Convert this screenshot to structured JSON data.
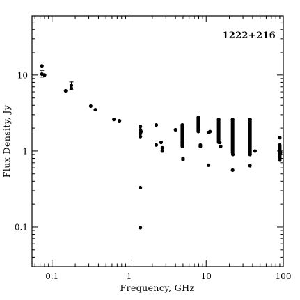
{
  "chart_data": {
    "type": "scatter",
    "title": "1222+216",
    "xlabel": "Frequency, GHz",
    "ylabel": "Flux Density, Jy",
    "xscale": "log",
    "yscale": "log",
    "xlim": [
      0.055,
      100
    ],
    "ylim": [
      0.03,
      60
    ],
    "grid": false,
    "legend": "none",
    "marker_color": "#000000",
    "x_ticks": [
      {
        "value": 0.1,
        "label": "0.1"
      },
      {
        "value": 1,
        "label": "1"
      },
      {
        "value": 10,
        "label": "10"
      },
      {
        "value": 100,
        "label": "100"
      }
    ],
    "y_ticks": [
      {
        "value": 0.1,
        "label": "0.1"
      },
      {
        "value": 1,
        "label": "1"
      },
      {
        "value": 10,
        "label": "10"
      }
    ],
    "points": [
      [
        0.074,
        13.2
      ],
      [
        0.074,
        10.3
      ],
      [
        0.08,
        10.0
      ],
      [
        0.15,
        6.2
      ],
      [
        0.178,
        6.7
      ],
      [
        0.178,
        7.3
      ],
      [
        0.318,
        3.9
      ],
      [
        0.365,
        3.5
      ],
      [
        0.635,
        2.6
      ],
      [
        0.75,
        2.5
      ],
      [
        1.4,
        2.1
      ],
      [
        1.4,
        1.9
      ],
      [
        1.4,
        1.7
      ],
      [
        1.4,
        1.55
      ],
      [
        1.43,
        1.8
      ],
      [
        1.4,
        0.33
      ],
      [
        1.4,
        0.098
      ],
      [
        2.25,
        2.2
      ],
      [
        2.25,
        1.2
      ],
      [
        2.6,
        1.3
      ],
      [
        2.7,
        1.1
      ],
      [
        2.7,
        1.0
      ],
      [
        4.0,
        1.9
      ],
      [
        4.9,
        2.2
      ],
      [
        4.9,
        1.3
      ],
      [
        5.0,
        0.8
      ],
      [
        5.0,
        0.77
      ],
      [
        7.9,
        2.75
      ],
      [
        8.0,
        1.9
      ],
      [
        8.4,
        1.15
      ],
      [
        8.4,
        1.2
      ],
      [
        10.7,
        1.75
      ],
      [
        11.2,
        1.8
      ],
      [
        10.7,
        0.65
      ],
      [
        14.5,
        2.6
      ],
      [
        15.0,
        1.3
      ],
      [
        15.4,
        1.15
      ],
      [
        22.0,
        2.6
      ],
      [
        22.2,
        0.9
      ],
      [
        22.0,
        0.56
      ],
      [
        37.0,
        2.6
      ],
      [
        37.0,
        0.9
      ],
      [
        37.0,
        0.64
      ],
      [
        43.0,
        1.0
      ],
      [
        90.0,
        1.5
      ],
      [
        90.0,
        0.82
      ],
      [
        90.0,
        0.76
      ],
      [
        92.0,
        0.95
      ]
    ],
    "error_bars": [
      {
        "x": 0.074,
        "y": 10.4,
        "low": 9.4,
        "high": 11.5
      },
      {
        "x": 0.178,
        "y": 7.0,
        "low": 6.4,
        "high": 8.1
      }
    ],
    "vertical_runs": [
      {
        "x": 4.9,
        "y_low": 1.4,
        "y_high": 2.2
      },
      {
        "x": 4.9,
        "y_low": 1.15,
        "y_high": 1.35
      },
      {
        "x": 7.9,
        "y_low": 1.8,
        "y_high": 2.75
      },
      {
        "x": 14.5,
        "y_low": 1.3,
        "y_high": 2.6
      },
      {
        "x": 22.0,
        "y_low": 0.95,
        "y_high": 2.6
      },
      {
        "x": 37.0,
        "y_low": 0.9,
        "y_high": 2.6
      },
      {
        "x": 90.0,
        "y_low": 0.85,
        "y_high": 1.2
      }
    ]
  }
}
